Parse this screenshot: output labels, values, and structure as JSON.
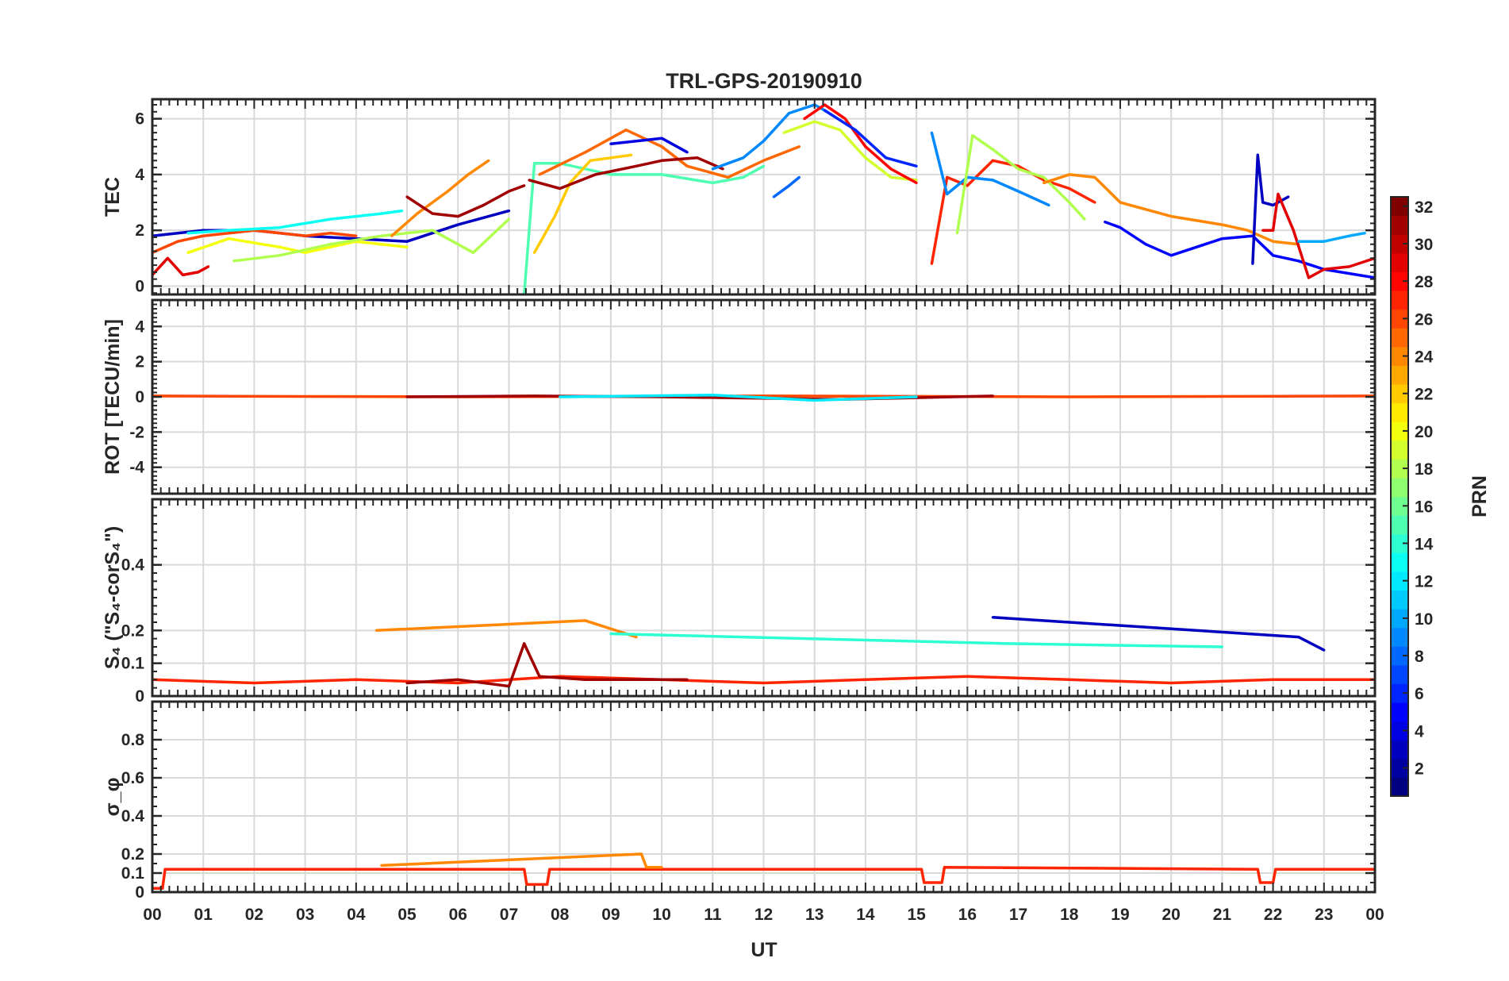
{
  "chart_data": [
    {
      "type": "line",
      "title": "TRL-GPS-20190910",
      "ylabel": "TEC",
      "ylim": [
        -0.3,
        6.7
      ],
      "yticks": [
        0,
        2,
        4,
        6
      ],
      "xlabel": "",
      "series": [
        {
          "prn": 3,
          "x": [
            0.0,
            0.5,
            1.0,
            2.0,
            3.0,
            4.0,
            5.0,
            6.0,
            7.0
          ],
          "values": [
            1.8,
            1.9,
            2.0,
            2.0,
            1.8,
            1.7,
            1.6,
            2.2,
            2.7
          ]
        },
        {
          "prn": 26,
          "x": [
            0.0,
            0.5,
            1.0,
            2.0,
            3.0,
            3.5,
            4.0
          ],
          "values": [
            1.2,
            1.6,
            1.8,
            2.0,
            1.8,
            1.9,
            1.8
          ]
        },
        {
          "prn": 29,
          "x": [
            0.0,
            0.3,
            0.6,
            0.9,
            1.1
          ],
          "values": [
            0.4,
            1.0,
            0.4,
            0.5,
            0.7
          ]
        },
        {
          "prn": 13,
          "x": [
            0.7,
            1.5,
            2.5,
            3.5,
            4.5,
            4.9
          ],
          "values": [
            1.9,
            2.0,
            2.1,
            2.4,
            2.6,
            2.7
          ]
        },
        {
          "prn": 20,
          "x": [
            0.7,
            1.5,
            2.5,
            3.0,
            4.0,
            5.0
          ],
          "values": [
            1.2,
            1.7,
            1.4,
            1.2,
            1.6,
            1.4
          ]
        },
        {
          "prn": 18,
          "x": [
            1.6,
            2.5,
            3.5,
            4.5,
            5.5,
            6.3,
            7.0
          ],
          "values": [
            0.9,
            1.1,
            1.5,
            1.8,
            2.0,
            1.2,
            2.4
          ]
        },
        {
          "prn": 24,
          "x": [
            4.7,
            5.2,
            5.8,
            6.2,
            6.6
          ],
          "values": [
            1.8,
            2.6,
            3.4,
            4.0,
            4.5
          ]
        },
        {
          "prn": 31,
          "x": [
            5.0,
            5.5,
            6.0,
            6.5,
            7.0,
            7.3
          ],
          "values": [
            3.2,
            2.6,
            2.5,
            2.9,
            3.4,
            3.6
          ]
        },
        {
          "prn": 15,
          "x": [
            7.3,
            7.5,
            8.0,
            9.0,
            10.0,
            11.0,
            11.6,
            12.0
          ],
          "values": [
            -0.3,
            4.4,
            4.4,
            4.0,
            4.0,
            3.7,
            3.9,
            4.3
          ]
        },
        {
          "prn": 22,
          "x": [
            7.5,
            7.9,
            8.2,
            8.6,
            9.0,
            9.4
          ],
          "values": [
            1.2,
            2.5,
            3.7,
            4.5,
            4.6,
            4.7
          ]
        },
        {
          "prn": 25,
          "x": [
            7.6,
            8.5,
            9.3,
            10.0,
            10.5,
            11.3,
            12.0,
            12.7
          ],
          "values": [
            4.0,
            4.8,
            5.6,
            5.0,
            4.3,
            3.9,
            4.5,
            5.0
          ]
        },
        {
          "prn": 31,
          "x": [
            7.4,
            8.0,
            8.7,
            9.5,
            10.0,
            10.7,
            11.2
          ],
          "values": [
            3.8,
            3.5,
            4.0,
            4.3,
            4.5,
            4.6,
            4.2
          ]
        },
        {
          "prn": 4,
          "x": [
            9.0,
            9.5,
            10.0,
            10.5
          ],
          "values": [
            5.1,
            5.2,
            5.3,
            4.8
          ]
        },
        {
          "prn": 9,
          "x": [
            11.0,
            11.6,
            12.0,
            12.5,
            13.0,
            13.2
          ],
          "values": [
            4.2,
            4.6,
            5.2,
            6.2,
            6.5,
            6.3
          ]
        },
        {
          "prn": 8,
          "x": [
            12.2,
            12.5,
            12.7
          ],
          "values": [
            3.2,
            3.6,
            3.9
          ]
        },
        {
          "prn": 19,
          "x": [
            12.4,
            13.0,
            13.5,
            14.0,
            14.5,
            15.0
          ],
          "values": [
            5.5,
            5.9,
            5.6,
            4.6,
            3.9,
            3.8
          ]
        },
        {
          "prn": 28,
          "x": [
            12.8,
            13.2,
            13.6,
            14.0,
            14.5,
            15.0
          ],
          "values": [
            6.0,
            6.5,
            6.0,
            5.0,
            4.2,
            3.7
          ]
        },
        {
          "prn": 6,
          "x": [
            13.2,
            13.8,
            14.4,
            15.0
          ],
          "values": [
            6.3,
            5.6,
            4.6,
            4.3
          ]
        },
        {
          "prn": 27,
          "x": [
            15.3,
            15.6,
            16.0,
            16.5,
            17.0,
            17.5,
            18.0,
            18.5
          ],
          "values": [
            0.8,
            3.9,
            3.6,
            4.5,
            4.3,
            3.8,
            3.5,
            3.0
          ]
        },
        {
          "prn": 9,
          "x": [
            15.3,
            15.6,
            16.0,
            16.5,
            17.0,
            17.6
          ],
          "values": [
            5.5,
            3.3,
            3.9,
            3.8,
            3.4,
            2.9
          ]
        },
        {
          "prn": 18,
          "x": [
            15.8,
            16.1,
            16.5,
            17.0,
            17.5,
            18.0,
            18.3
          ],
          "values": [
            1.9,
            5.4,
            4.9,
            4.2,
            3.9,
            3.0,
            2.4
          ]
        },
        {
          "prn": 24,
          "x": [
            17.5,
            18.0,
            18.5,
            19.0,
            20.0,
            21.0,
            21.5,
            22.0,
            22.5
          ],
          "values": [
            3.7,
            4.0,
            3.9,
            3.0,
            2.5,
            2.2,
            2.0,
            1.6,
            1.5
          ]
        },
        {
          "prn": 5,
          "x": [
            18.7,
            19.0,
            19.5,
            20.0,
            21.0,
            21.6,
            22.0,
            22.5,
            23.0,
            24.0
          ],
          "values": [
            2.3,
            2.1,
            1.5,
            1.1,
            1.7,
            1.8,
            1.1,
            0.9,
            0.6,
            0.3
          ]
        },
        {
          "prn": 3,
          "x": [
            21.6,
            21.7,
            21.8,
            22.0,
            22.3
          ],
          "values": [
            0.8,
            4.7,
            3.0,
            2.9,
            3.2
          ]
        },
        {
          "prn": 29,
          "x": [
            21.8,
            22.0,
            22.1,
            22.4,
            22.7,
            23.0,
            23.5,
            24.0
          ],
          "values": [
            2.0,
            2.0,
            3.3,
            2.0,
            0.3,
            0.6,
            0.7,
            1.0
          ]
        },
        {
          "prn": 10,
          "x": [
            22.5,
            23.0,
            23.5,
            23.8
          ],
          "values": [
            1.6,
            1.6,
            1.8,
            1.9
          ]
        }
      ]
    },
    {
      "type": "line",
      "title": "",
      "ylabel": "ROT [TECU/min]",
      "ylim": [
        -5.5,
        5.5
      ],
      "yticks": [
        -4,
        -2,
        0,
        2,
        4
      ],
      "xlabel": "",
      "series": [
        {
          "prn": 26,
          "x": [
            0.0,
            6.0,
            12.0,
            18.0,
            24.0
          ],
          "values": [
            0.05,
            0.0,
            0.05,
            0.0,
            0.05
          ]
        },
        {
          "prn": 31,
          "x": [
            5.0,
            7.5,
            10.0,
            13.5,
            16.5
          ],
          "values": [
            0.0,
            0.05,
            0.0,
            -0.15,
            0.05
          ]
        },
        {
          "prn": 12,
          "x": [
            8.0,
            11.0,
            13.0,
            15.0
          ],
          "values": [
            0.0,
            0.1,
            -0.2,
            0.0
          ]
        }
      ]
    },
    {
      "type": "line",
      "title": "",
      "ylabel": "S₄ (\"S₄-corS₄\")",
      "ylim": [
        0,
        0.6
      ],
      "yticks": [
        0,
        0.1,
        0.2,
        0.4
      ],
      "xlabel": "",
      "series": [
        {
          "prn": 27,
          "x": [
            0.0,
            2.0,
            4.0,
            6.0,
            8.0,
            10.0,
            12.0,
            14.0,
            16.0,
            18.0,
            20.0,
            22.0,
            24.0
          ],
          "values": [
            0.05,
            0.04,
            0.05,
            0.04,
            0.06,
            0.05,
            0.04,
            0.05,
            0.06,
            0.05,
            0.04,
            0.05,
            0.05
          ]
        },
        {
          "prn": 31,
          "x": [
            5.0,
            6.0,
            7.0,
            7.3,
            7.6,
            8.5,
            9.5,
            10.5
          ],
          "values": [
            0.04,
            0.05,
            0.03,
            0.16,
            0.06,
            0.05,
            0.05,
            0.05
          ]
        },
        {
          "prn": 24,
          "x": [
            4.4,
            8.5,
            9.5
          ],
          "values": [
            0.2,
            0.23,
            0.18
          ]
        },
        {
          "prn": 3,
          "x": [
            16.5,
            22.5,
            23.0
          ],
          "values": [
            0.24,
            0.18,
            0.14
          ]
        },
        {
          "prn": 14,
          "x": [
            9.0,
            16.8,
            21.0
          ],
          "values": [
            0.19,
            0.16,
            0.15
          ]
        }
      ]
    },
    {
      "type": "line",
      "title": "",
      "ylabel": "σ_φ",
      "ylim": [
        0,
        1.0
      ],
      "yticks": [
        0,
        0.1,
        0.2,
        0.4,
        0.6,
        0.8
      ],
      "xlabel": "UT",
      "xticklabels": [
        "00",
        "01",
        "02",
        "03",
        "04",
        "05",
        "06",
        "07",
        "08",
        "09",
        "10",
        "11",
        "12",
        "13",
        "14",
        "15",
        "16",
        "17",
        "18",
        "19",
        "20",
        "21",
        "22",
        "23",
        "00"
      ],
      "series": [
        {
          "prn": 27,
          "x": [
            0.0,
            0.2,
            0.25,
            7.3,
            7.35,
            7.75,
            7.8,
            15.1,
            15.15,
            15.5,
            15.55,
            21.7,
            21.75,
            22.0,
            22.05,
            24.0
          ],
          "values": [
            0.02,
            0.02,
            0.12,
            0.12,
            0.04,
            0.04,
            0.12,
            0.12,
            0.05,
            0.05,
            0.13,
            0.12,
            0.05,
            0.05,
            0.12,
            0.12
          ]
        },
        {
          "prn": 24,
          "x": [
            4.5,
            9.6,
            9.7,
            10.0
          ],
          "values": [
            0.14,
            0.2,
            0.13,
            0.13
          ]
        }
      ]
    }
  ],
  "colorbar": {
    "label": "PRN",
    "range": [
      1,
      32
    ],
    "ticks": [
      2,
      4,
      6,
      8,
      10,
      12,
      14,
      16,
      18,
      20,
      22,
      24,
      26,
      28,
      30,
      32
    ],
    "colormap": "jet"
  }
}
